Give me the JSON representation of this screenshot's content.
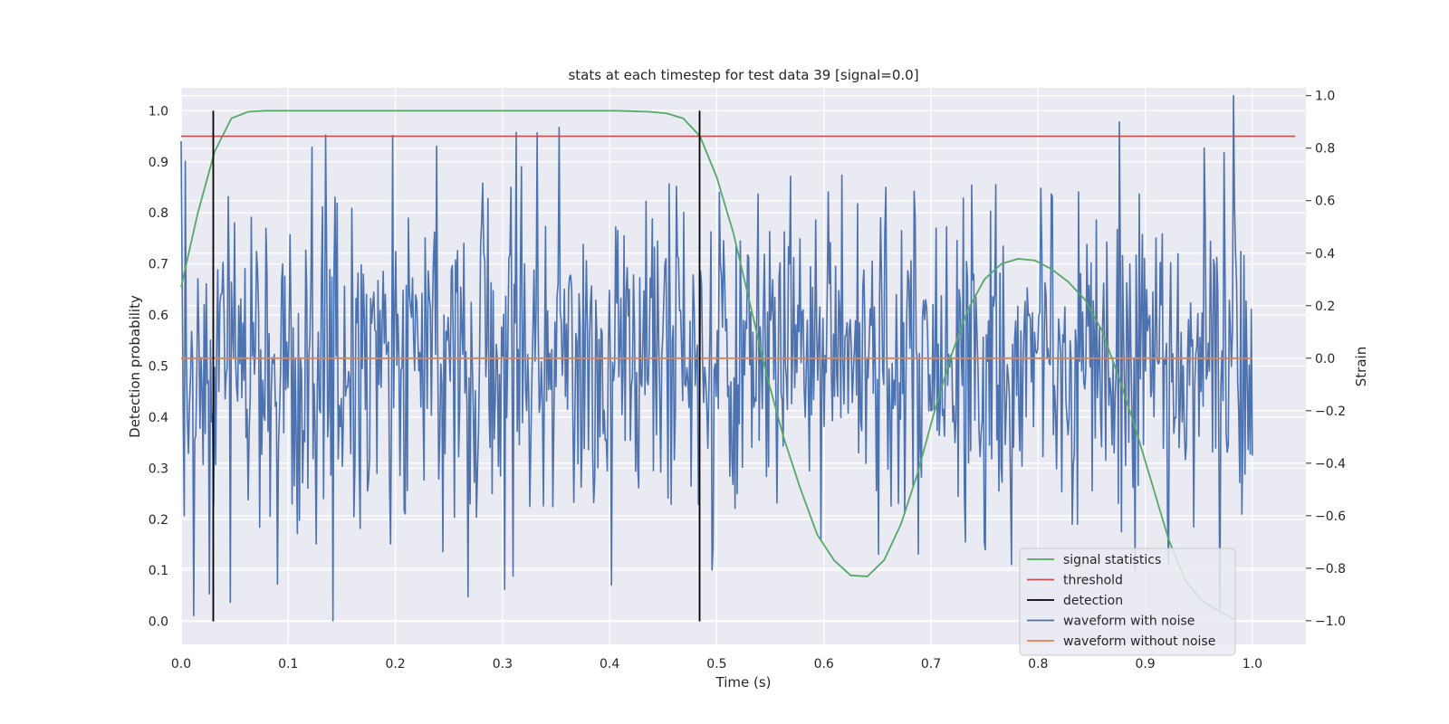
{
  "chart_data": {
    "type": "line",
    "title": "stats at each timestep for test data 39 [signal=0.0]",
    "xlabel": "Time (s)",
    "ylabel": "Detection probability",
    "y2label": "Strain",
    "xlim": [
      0.0,
      1.05
    ],
    "ylim": [
      -0.045,
      1.045
    ],
    "y2lim": [
      -1.09,
      1.03
    ],
    "xticks": [
      "0.0",
      "0.1",
      "0.2",
      "0.3",
      "0.4",
      "0.5",
      "0.6",
      "0.7",
      "0.8",
      "0.9",
      "1.0"
    ],
    "yticks": [
      "0.0",
      "0.1",
      "0.2",
      "0.3",
      "0.4",
      "0.5",
      "0.6",
      "0.7",
      "0.8",
      "0.9",
      "1.0"
    ],
    "y2ticks": [
      "−1.0",
      "−0.8",
      "−0.6",
      "−0.4",
      "−0.2",
      "0.0",
      "0.2",
      "0.4",
      "0.6",
      "0.8",
      "1.0"
    ],
    "grid": true,
    "legend_position": "lower-right",
    "background": "#eaeaf2",
    "series": [
      {
        "name": "signal statistics",
        "axis": "left",
        "color": "#55a868",
        "x": [
          0.0,
          0.0156,
          0.0313,
          0.0469,
          0.0625,
          0.0781,
          0.0938,
          0.1094,
          0.125,
          0.1406,
          0.1563,
          0.1719,
          0.1875,
          0.2031,
          0.2188,
          0.2344,
          0.25,
          0.2656,
          0.2813,
          0.2969,
          0.3125,
          0.3281,
          0.3438,
          0.3594,
          0.375,
          0.3906,
          0.4063,
          0.4219,
          0.4375,
          0.4531,
          0.4688,
          0.4844,
          0.5,
          0.5156,
          0.5313,
          0.5469,
          0.5625,
          0.5781,
          0.5938,
          0.6094,
          0.625,
          0.6406,
          0.6563,
          0.6719,
          0.6875,
          0.7031,
          0.7188,
          0.7344,
          0.75,
          0.7656,
          0.7813,
          0.7969,
          0.8125,
          0.8281,
          0.8438,
          0.8594,
          0.875,
          0.8906,
          0.9063,
          0.9219,
          0.9375,
          0.9531,
          0.9688,
          0.9844
        ],
        "y": [
          0.655,
          0.8,
          0.92,
          0.985,
          0.998,
          1.0,
          1.0,
          1.0,
          1.0,
          1.0,
          1.0,
          1.0,
          1.0,
          1.0,
          1.0,
          1.0,
          1.0,
          1.0,
          1.0,
          1.0,
          1.0,
          1.0,
          1.0,
          1.0,
          1.0,
          1.0,
          1.0,
          0.999,
          0.998,
          0.995,
          0.985,
          0.95,
          0.87,
          0.76,
          0.62,
          0.48,
          0.36,
          0.26,
          0.17,
          0.12,
          0.09,
          0.088,
          0.12,
          0.19,
          0.29,
          0.41,
          0.52,
          0.61,
          0.67,
          0.7,
          0.71,
          0.707,
          0.69,
          0.665,
          0.63,
          0.57,
          0.48,
          0.38,
          0.27,
          0.16,
          0.08,
          0.04,
          0.02,
          0.003
        ]
      },
      {
        "name": "threshold",
        "axis": "left",
        "color": "#c44e52",
        "x": [
          0.0,
          1.04
        ],
        "y": [
          0.95,
          0.95
        ]
      },
      {
        "name": "detection",
        "axis": "left",
        "color": "#000000",
        "segments": [
          {
            "x": 0.03,
            "y": [
              0.0,
              1.0
            ]
          },
          {
            "x": 0.484,
            "y": [
              0.0,
              1.0
            ]
          }
        ]
      },
      {
        "name": "waveform with noise",
        "axis": "right",
        "color": "#4c72b0",
        "x_start": 0.0,
        "x_end": 1.0,
        "n_points": 1024,
        "seed": 39,
        "std": 0.3,
        "highlights": [
          {
            "x": 0.004,
            "y": 0.75
          },
          {
            "x": 0.003,
            "y": -0.6
          },
          {
            "x": 0.135,
            "y": 0.85
          },
          {
            "x": 0.142,
            "y": -1.0
          },
          {
            "x": 0.09,
            "y": -0.86
          },
          {
            "x": 0.313,
            "y": 0.86
          },
          {
            "x": 0.302,
            "y": -0.88
          },
          {
            "x": 0.31,
            "y": -0.83
          },
          {
            "x": 0.876,
            "y": 0.9
          },
          {
            "x": 0.982,
            "y": 1.0
          },
          {
            "x": 0.97,
            "y": -0.96
          },
          {
            "x": 0.046,
            "y": -0.93
          }
        ]
      },
      {
        "name": "waveform without noise",
        "axis": "right",
        "color": "#dd8452",
        "x": [
          0.0,
          1.0
        ],
        "y": [
          0.0,
          0.0
        ]
      }
    ]
  }
}
